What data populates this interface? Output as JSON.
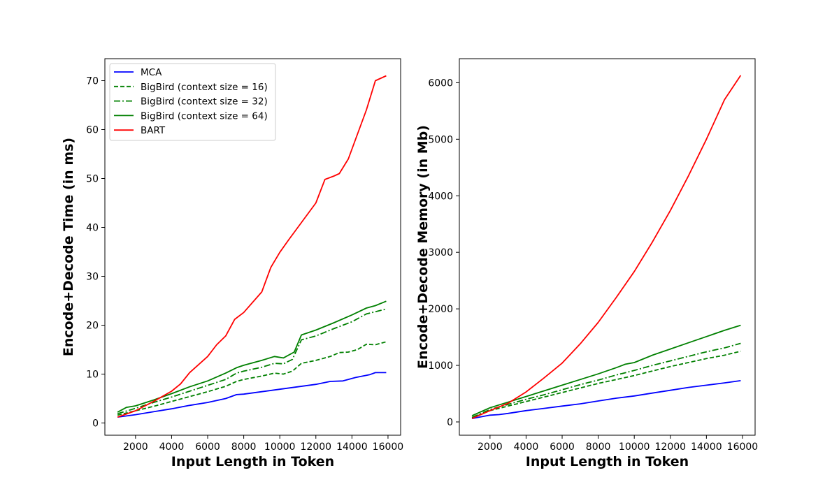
{
  "chart_data": [
    {
      "type": "line",
      "xlabel": "Input Length in Token",
      "ylabel": "Encode+Decode Time (in ms)",
      "xlim": [
        300,
        16700
      ],
      "ylim": [
        -2.5,
        74.5
      ],
      "xticks": [
        2000,
        4000,
        6000,
        8000,
        10000,
        12000,
        14000,
        16000
      ],
      "yticks": [
        0,
        10,
        20,
        30,
        40,
        50,
        60,
        70
      ],
      "legend": "upper-left",
      "series": [
        {
          "name": "MCA",
          "color": "#0000ff",
          "style": "solid",
          "x": [
            1000,
            2000,
            3000,
            4000,
            5000,
            6000,
            7000,
            7600,
            8000,
            9000,
            10000,
            11000,
            12000,
            12800,
            13500,
            14200,
            15000,
            15300,
            15900
          ],
          "y": [
            1.2,
            1.7,
            2.3,
            2.9,
            3.6,
            4.2,
            5.0,
            5.8,
            5.9,
            6.4,
            6.9,
            7.4,
            7.9,
            8.5,
            8.6,
            9.3,
            9.9,
            10.3,
            10.3
          ]
        },
        {
          "name": "BigBird (context size = 16)",
          "color": "#008000",
          "style": "dashed",
          "x": [
            1000,
            2000,
            3000,
            4000,
            5000,
            6000,
            7000,
            7600,
            8000,
            9000,
            9700,
            10200,
            10700,
            11200,
            12000,
            12800,
            13300,
            13800,
            14300,
            14800,
            15300,
            15900
          ],
          "y": [
            1.6,
            2.5,
            3.4,
            4.4,
            5.4,
            6.4,
            7.5,
            8.5,
            8.9,
            9.6,
            10.2,
            10.0,
            10.6,
            12.2,
            12.8,
            13.6,
            14.4,
            14.5,
            15.0,
            16.1,
            16.0,
            16.6
          ]
        },
        {
          "name": "BigBird (context size = 32)",
          "color": "#008000",
          "style": "dashdot",
          "x": [
            1000,
            2000,
            3000,
            4000,
            5000,
            6000,
            7000,
            7600,
            8000,
            9000,
            9700,
            10200,
            10700,
            11200,
            12000,
            13000,
            14000,
            14800,
            15900
          ],
          "y": [
            1.9,
            3.0,
            4.2,
            5.3,
            6.5,
            7.7,
            8.9,
            10.2,
            10.6,
            11.4,
            12.2,
            12.1,
            13.0,
            17.0,
            17.8,
            19.3,
            20.7,
            22.3,
            23.3
          ]
        },
        {
          "name": "BigBird (context size = 64)",
          "color": "#008000",
          "style": "solid",
          "x": [
            1000,
            1500,
            2000,
            3000,
            4000,
            5000,
            6000,
            7000,
            7600,
            8000,
            9000,
            9700,
            10200,
            10800,
            11200,
            12000,
            13000,
            14000,
            14800,
            15300,
            15900
          ],
          "y": [
            2.2,
            3.2,
            3.5,
            4.7,
            6.0,
            7.4,
            8.6,
            10.2,
            11.3,
            11.8,
            12.8,
            13.6,
            13.3,
            14.5,
            18.0,
            19.0,
            20.5,
            22.1,
            23.5,
            24.0,
            24.9
          ]
        },
        {
          "name": "BART",
          "color": "#ff0000",
          "style": "solid",
          "x": [
            1000,
            2000,
            3000,
            4000,
            4500,
            5000,
            6000,
            6500,
            7000,
            7500,
            8000,
            9000,
            9500,
            10000,
            10500,
            11000,
            11500,
            12000,
            12500,
            13000,
            13300,
            13800,
            14300,
            14800,
            15300,
            15900
          ],
          "y": [
            1.2,
            2.5,
            4.4,
            6.5,
            8.0,
            10.3,
            13.6,
            16.0,
            17.8,
            21.2,
            22.6,
            26.8,
            31.8,
            34.9,
            37.5,
            40.0,
            42.5,
            45.0,
            49.8,
            50.5,
            51.0,
            54.0,
            59.0,
            64.0,
            70.0,
            71.0
          ]
        }
      ]
    },
    {
      "type": "line",
      "xlabel": "Input Length in Token",
      "ylabel": "Encode+Decode Memory (in Mb)",
      "xlim": [
        300,
        16700
      ],
      "ylim": [
        -235,
        6425
      ],
      "xticks": [
        2000,
        4000,
        6000,
        8000,
        10000,
        12000,
        14000,
        16000
      ],
      "yticks": [
        0,
        1000,
        2000,
        3000,
        4000,
        5000,
        6000
      ],
      "series": [
        {
          "name": "MCA",
          "color": "#0000ff",
          "style": "solid",
          "x": [
            1000,
            2000,
            2500,
            3000,
            4000,
            5000,
            6000,
            7000,
            8000,
            9000,
            10000,
            11000,
            12000,
            13000,
            14000,
            15000,
            15900
          ],
          "y": [
            60,
            120,
            130,
            150,
            200,
            240,
            280,
            320,
            370,
            420,
            460,
            510,
            560,
            610,
            650,
            690,
            730
          ]
        },
        {
          "name": "BigBird (context size = 16)",
          "color": "#008000",
          "style": "dashed",
          "x": [
            1000,
            2000,
            3000,
            4000,
            5000,
            6000,
            7000,
            8000,
            9000,
            10000,
            11000,
            12000,
            13000,
            14000,
            15000,
            15900
          ],
          "y": [
            70,
            200,
            280,
            360,
            440,
            520,
            600,
            680,
            750,
            820,
            900,
            980,
            1050,
            1120,
            1180,
            1250
          ]
        },
        {
          "name": "BigBird (context size = 32)",
          "color": "#008000",
          "style": "dashdot",
          "x": [
            1000,
            2000,
            3000,
            4000,
            5000,
            6000,
            7000,
            8000,
            9000,
            10000,
            11000,
            12000,
            13000,
            14000,
            15000,
            15900
          ],
          "y": [
            80,
            220,
            310,
            400,
            480,
            570,
            660,
            740,
            830,
            910,
            1000,
            1080,
            1160,
            1240,
            1310,
            1390
          ]
        },
        {
          "name": "BigBird (context size = 64)",
          "color": "#008000",
          "style": "solid",
          "x": [
            1000,
            2000,
            3000,
            4000,
            5000,
            6000,
            7000,
            8000,
            9000,
            9500,
            10000,
            11000,
            12000,
            13000,
            14000,
            15000,
            15900
          ],
          "y": [
            110,
            250,
            350,
            450,
            550,
            650,
            750,
            850,
            960,
            1020,
            1050,
            1180,
            1290,
            1400,
            1510,
            1620,
            1710
          ]
        },
        {
          "name": "BART",
          "color": "#ff0000",
          "style": "solid",
          "x": [
            1000,
            2000,
            3000,
            4000,
            5000,
            6000,
            7000,
            8000,
            9000,
            10000,
            11000,
            12000,
            13000,
            14000,
            15000,
            15900
          ],
          "y": [
            60,
            200,
            330,
            530,
            780,
            1040,
            1380,
            1760,
            2200,
            2660,
            3180,
            3740,
            4350,
            5000,
            5700,
            6130
          ]
        }
      ]
    }
  ]
}
